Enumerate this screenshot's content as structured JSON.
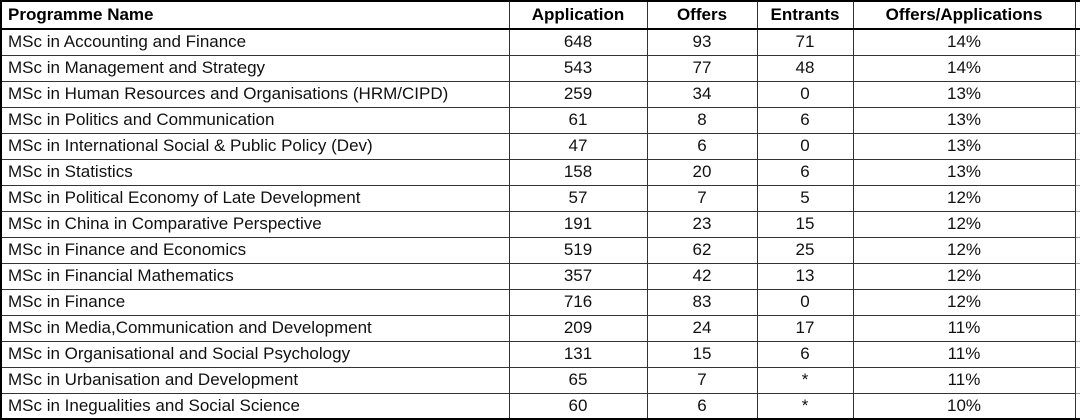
{
  "chart_data": {
    "type": "table",
    "title": "",
    "columns": [
      "Programme Name",
      "Application",
      "Offers",
      "Entrants",
      "Offers/Applications"
    ],
    "rows": [
      [
        "MSc in Accounting and Finance",
        648,
        93,
        71,
        "14%"
      ],
      [
        "MSc in Management and Strategy",
        543,
        77,
        48,
        "14%"
      ],
      [
        "MSc in Human Resources and Organisations (HRM/CIPD)",
        259,
        34,
        0,
        "13%"
      ],
      [
        "MSc in Politics and Communication",
        61,
        8,
        6,
        "13%"
      ],
      [
        "MSc in International Social & Public Policy (Dev)",
        47,
        6,
        0,
        "13%"
      ],
      [
        "MSc in Statistics",
        158,
        20,
        6,
        "13%"
      ],
      [
        "MSc in Political Economy of Late Development",
        57,
        7,
        5,
        "12%"
      ],
      [
        "MSc in China in Comparative Perspective",
        191,
        23,
        15,
        "12%"
      ],
      [
        "MSc in Finance and Economics",
        519,
        62,
        25,
        "12%"
      ],
      [
        "MSc in Financial Mathematics",
        357,
        42,
        13,
        "12%"
      ],
      [
        "MSc in Finance",
        716,
        83,
        0,
        "12%"
      ],
      [
        "MSc in Media,Communication and Development",
        209,
        24,
        17,
        "11%"
      ],
      [
        "MSc in Organisational and Social Psychology",
        131,
        15,
        6,
        "11%"
      ],
      [
        "MSc in Urbanisation and Development",
        65,
        7,
        "*",
        "11%"
      ],
      [
        "MSc in Inegualities and Social Science",
        60,
        6,
        "*",
        "10%"
      ]
    ],
    "layout": {
      "grid": "on",
      "header_style": "bold",
      "border_color": "#000000",
      "background": "#ffffff"
    }
  }
}
